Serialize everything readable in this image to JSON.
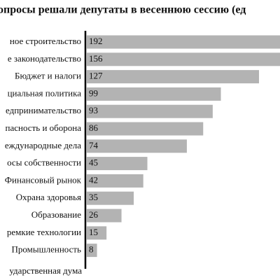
{
  "chart_data": {
    "type": "barh",
    "title": "опросы решали депутаты в весеннюю сессию (ед",
    "categories": [
      "ное строительство",
      "е законодательство",
      "Бюджет и налоги",
      "циальная политика",
      "едпринимательство",
      "пасность и оборона",
      "еждународные дела",
      "осы собственности",
      "Финансовый рынок",
      "Охрана здоровья",
      "Образование",
      "ремкие технологии",
      "Промышленность"
    ],
    "values": [
      192,
      156,
      127,
      99,
      93,
      86,
      74,
      45,
      42,
      35,
      26,
      15,
      8
    ],
    "color": "#b3b3b3",
    "note": "ударственная дума"
  }
}
